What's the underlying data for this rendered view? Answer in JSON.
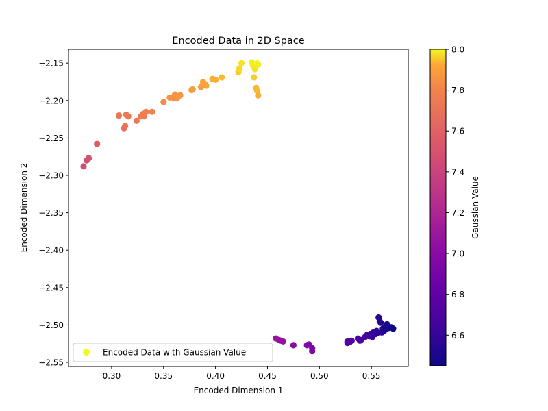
{
  "chart_data": {
    "type": "scatter",
    "title": "Encoded Data in 2D Space",
    "xlabel": "Encoded Dimension 1",
    "ylabel": "Encoded Dimension 2",
    "xlim": [
      0.2585,
      0.5855
    ],
    "ylim": [
      -2.5555,
      -2.1315
    ],
    "xticks": [
      0.3,
      0.35,
      0.4,
      0.45,
      0.5,
      0.55
    ],
    "xtick_labels": [
      "0.30",
      "0.35",
      "0.40",
      "0.45",
      "0.50",
      "0.55"
    ],
    "yticks": [
      -2.15,
      -2.2,
      -2.25,
      -2.3,
      -2.35,
      -2.4,
      -2.45,
      -2.5,
      -2.55
    ],
    "ytick_labels": [
      "−2.15",
      "−2.20",
      "−2.25",
      "−2.30",
      "−2.35",
      "−2.40",
      "−2.45",
      "−2.50",
      "−2.55"
    ],
    "grid": false,
    "legend": {
      "label": "Encoded Data with Gaussian Value",
      "position": "lower-left",
      "marker_color": "#f0f921"
    },
    "colorbar": {
      "label": "Gaussian Value",
      "colormap": "plasma",
      "range": [
        6.45,
        8.0
      ],
      "ticks": [
        6.6,
        6.8,
        7.0,
        7.2,
        7.4,
        7.6,
        7.8,
        8.0
      ],
      "tick_labels": [
        "6.6",
        "6.8",
        "7.0",
        "7.2",
        "7.4",
        "7.6",
        "7.8",
        "8.0"
      ]
    },
    "series": [
      {
        "name": "Encoded Data with Gaussian Value",
        "points": [
          [
            0.273,
            -2.288,
            7.45
          ],
          [
            0.276,
            -2.28,
            7.48
          ],
          [
            0.278,
            -2.277,
            7.5
          ],
          [
            0.286,
            -2.258,
            7.58
          ],
          [
            0.307,
            -2.22,
            7.72
          ],
          [
            0.312,
            -2.237,
            7.68
          ],
          [
            0.313,
            -2.234,
            7.7
          ],
          [
            0.314,
            -2.219,
            7.74
          ],
          [
            0.316,
            -2.221,
            7.74
          ],
          [
            0.324,
            -2.227,
            7.72
          ],
          [
            0.328,
            -2.221,
            7.76
          ],
          [
            0.33,
            -2.218,
            7.77
          ],
          [
            0.331,
            -2.221,
            7.76
          ],
          [
            0.333,
            -2.215,
            7.78
          ],
          [
            0.339,
            -2.215,
            7.79
          ],
          [
            0.35,
            -2.202,
            7.83
          ],
          [
            0.356,
            -2.196,
            7.85
          ],
          [
            0.36,
            -2.197,
            7.85
          ],
          [
            0.361,
            -2.192,
            7.86
          ],
          [
            0.363,
            -2.197,
            7.86
          ],
          [
            0.366,
            -2.193,
            7.87
          ],
          [
            0.377,
            -2.186,
            7.89
          ],
          [
            0.378,
            -2.185,
            7.89
          ],
          [
            0.386,
            -2.182,
            7.9
          ],
          [
            0.388,
            -2.175,
            7.91
          ],
          [
            0.39,
            -2.178,
            7.91
          ],
          [
            0.391,
            -2.18,
            7.91
          ],
          [
            0.397,
            -2.171,
            7.93
          ],
          [
            0.4,
            -2.172,
            7.93
          ],
          [
            0.406,
            -2.169,
            7.94
          ],
          [
            0.422,
            -2.162,
            7.96
          ],
          [
            0.423,
            -2.157,
            7.97
          ],
          [
            0.425,
            -2.15,
            7.98
          ],
          [
            0.435,
            -2.149,
            7.99
          ],
          [
            0.436,
            -2.153,
            7.99
          ],
          [
            0.437,
            -2.169,
            7.96
          ],
          [
            0.438,
            -2.158,
            7.98
          ],
          [
            0.439,
            -2.151,
            7.99
          ],
          [
            0.44,
            -2.15,
            8.0
          ],
          [
            0.441,
            -2.152,
            7.99
          ],
          [
            0.439,
            -2.183,
            7.94
          ],
          [
            0.44,
            -2.187,
            7.94
          ],
          [
            0.441,
            -2.193,
            7.93
          ],
          [
            0.458,
            -2.518,
            7.1
          ],
          [
            0.461,
            -2.52,
            7.08
          ],
          [
            0.463,
            -2.521,
            7.07
          ],
          [
            0.465,
            -2.522,
            7.06
          ],
          [
            0.475,
            -2.527,
            7.0
          ],
          [
            0.488,
            -2.527,
            6.96
          ],
          [
            0.49,
            -2.526,
            6.95
          ],
          [
            0.493,
            -2.531,
            6.93
          ],
          [
            0.493,
            -2.535,
            6.93
          ],
          [
            0.527,
            -2.522,
            6.74
          ],
          [
            0.527,
            -2.524,
            6.74
          ],
          [
            0.529,
            -2.523,
            6.73
          ],
          [
            0.531,
            -2.521,
            6.72
          ],
          [
            0.537,
            -2.518,
            6.7
          ],
          [
            0.539,
            -2.521,
            6.69
          ],
          [
            0.54,
            -2.52,
            6.69
          ],
          [
            0.544,
            -2.516,
            6.66
          ],
          [
            0.546,
            -2.513,
            6.65
          ],
          [
            0.548,
            -2.515,
            6.64
          ],
          [
            0.549,
            -2.512,
            6.63
          ],
          [
            0.551,
            -2.516,
            6.62
          ],
          [
            0.552,
            -2.51,
            6.61
          ],
          [
            0.554,
            -2.512,
            6.6
          ],
          [
            0.555,
            -2.508,
            6.59
          ],
          [
            0.556,
            -2.511,
            6.58
          ],
          [
            0.557,
            -2.49,
            6.55
          ],
          [
            0.558,
            -2.495,
            6.54
          ],
          [
            0.559,
            -2.497,
            6.53
          ],
          [
            0.56,
            -2.51,
            6.57
          ],
          [
            0.561,
            -2.505,
            6.52
          ],
          [
            0.562,
            -2.508,
            6.51
          ],
          [
            0.563,
            -2.503,
            6.51
          ],
          [
            0.564,
            -2.506,
            6.5
          ],
          [
            0.565,
            -2.499,
            6.49
          ],
          [
            0.566,
            -2.502,
            6.49
          ],
          [
            0.567,
            -2.504,
            6.48
          ],
          [
            0.569,
            -2.503,
            6.47
          ],
          [
            0.57,
            -2.504,
            6.46
          ],
          [
            0.571,
            -2.505,
            6.45
          ]
        ]
      }
    ]
  }
}
